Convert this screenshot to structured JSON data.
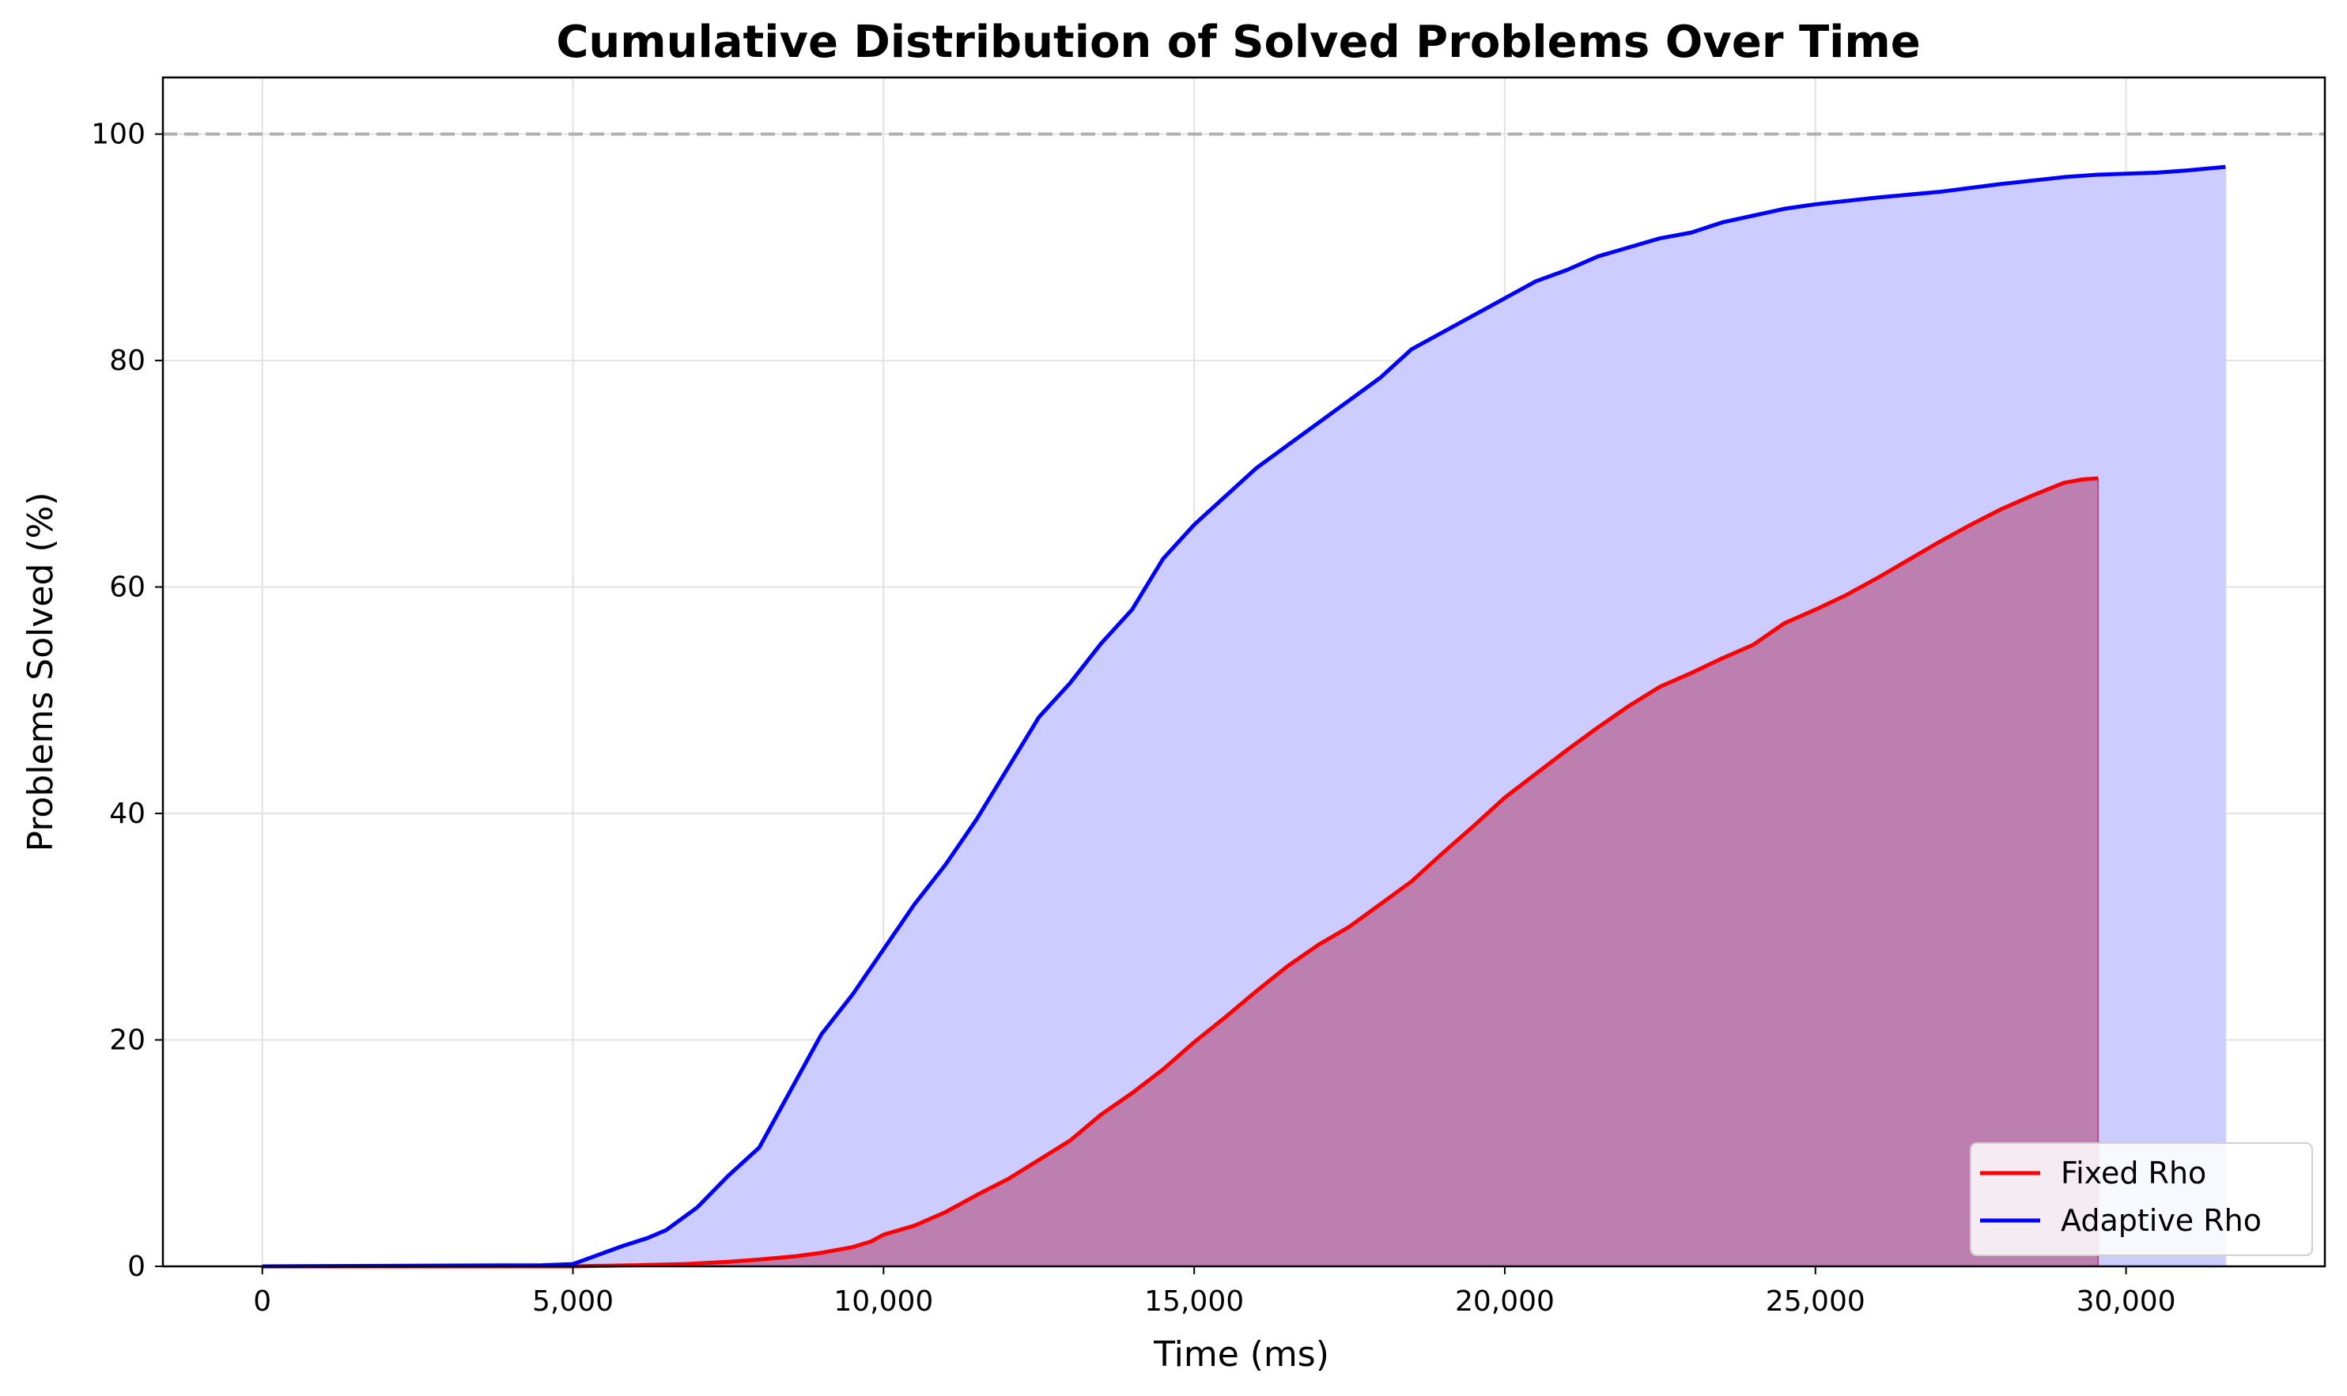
{
  "chart_data": {
    "type": "line",
    "title": "Cumulative Distribution of Solved Problems Over Time",
    "xlabel": "Time (ms)",
    "ylabel": "Problems Solved (%)",
    "xlim": [
      -1600,
      33200
    ],
    "ylim": [
      0,
      105
    ],
    "x_ticks": [
      0,
      5000,
      10000,
      15000,
      20000,
      25000,
      30000
    ],
    "x_tick_labels": [
      "0",
      "5,000",
      "10,000",
      "15,000",
      "20,000",
      "25,000",
      "30,000"
    ],
    "y_ticks": [
      0,
      20,
      40,
      60,
      80,
      100
    ],
    "y_tick_labels": [
      "0",
      "20",
      "40",
      "60",
      "80",
      "100"
    ],
    "grid": true,
    "legend_position": "lower-right",
    "reference_line": {
      "y": 100,
      "style": "dashed",
      "color": "#b0b0b0"
    },
    "series": [
      {
        "name": "Fixed Rho",
        "color": "#ff0000",
        "fill_color": "#b04070",
        "x": [
          0,
          5000,
          6000,
          6800,
          7500,
          8000,
          8600,
          9000,
          9500,
          9800,
          10000,
          10500,
          11000,
          11500,
          12000,
          12500,
          13000,
          13500,
          14000,
          14500,
          15000,
          15500,
          16000,
          16500,
          17000,
          17500,
          18000,
          18500,
          19000,
          19500,
          20000,
          20500,
          21000,
          21500,
          22000,
          22500,
          23000,
          23500,
          24000,
          24500,
          25000,
          25500,
          26000,
          26500,
          27000,
          27500,
          28000,
          28500,
          29000,
          29300,
          29550
        ],
        "y": [
          0,
          0,
          0.1,
          0.2,
          0.4,
          0.6,
          0.9,
          1.2,
          1.7,
          2.2,
          2.8,
          3.6,
          4.8,
          6.3,
          7.7,
          9.4,
          11.1,
          13.4,
          15.3,
          17.4,
          19.8,
          22.0,
          24.3,
          26.5,
          28.4,
          30.0,
          32.0,
          34.0,
          36.5,
          38.9,
          41.4,
          43.5,
          45.6,
          47.6,
          49.5,
          51.2,
          52.4,
          53.7,
          54.9,
          56.8,
          58.0,
          59.3,
          60.8,
          62.4,
          64.0,
          65.5,
          66.9,
          68.1,
          69.2,
          69.5,
          69.6
        ]
      },
      {
        "name": "Adaptive Rho",
        "color": "#0000ff",
        "fill_color": "#ccccff",
        "x": [
          0,
          4500,
          5000,
          5300,
          5800,
          6200,
          6500,
          7000,
          7500,
          8000,
          8500,
          9000,
          9500,
          10000,
          10500,
          11000,
          11500,
          12000,
          12500,
          13000,
          13500,
          14000,
          14500,
          15000,
          15500,
          16000,
          16500,
          17000,
          17500,
          18000,
          18500,
          19000,
          19500,
          20000,
          20500,
          21000,
          21500,
          22000,
          22500,
          23000,
          23500,
          24000,
          24500,
          25000,
          26000,
          27000,
          28000,
          29000,
          29500,
          30500,
          31000,
          31600
        ],
        "y": [
          0,
          0.1,
          0.2,
          0.8,
          1.8,
          2.5,
          3.2,
          5.2,
          8.0,
          10.5,
          15.5,
          20.5,
          24.0,
          28.0,
          32.0,
          35.5,
          39.5,
          44.0,
          48.5,
          51.5,
          55.0,
          58.0,
          62.5,
          65.5,
          68.0,
          70.5,
          72.5,
          74.5,
          76.5,
          78.5,
          81.0,
          82.5,
          84.0,
          85.5,
          87.0,
          88.0,
          89.2,
          90.0,
          90.8,
          91.3,
          92.2,
          92.8,
          93.4,
          93.8,
          94.4,
          94.9,
          95.6,
          96.2,
          96.4,
          96.6,
          96.8,
          97.1
        ]
      }
    ]
  }
}
